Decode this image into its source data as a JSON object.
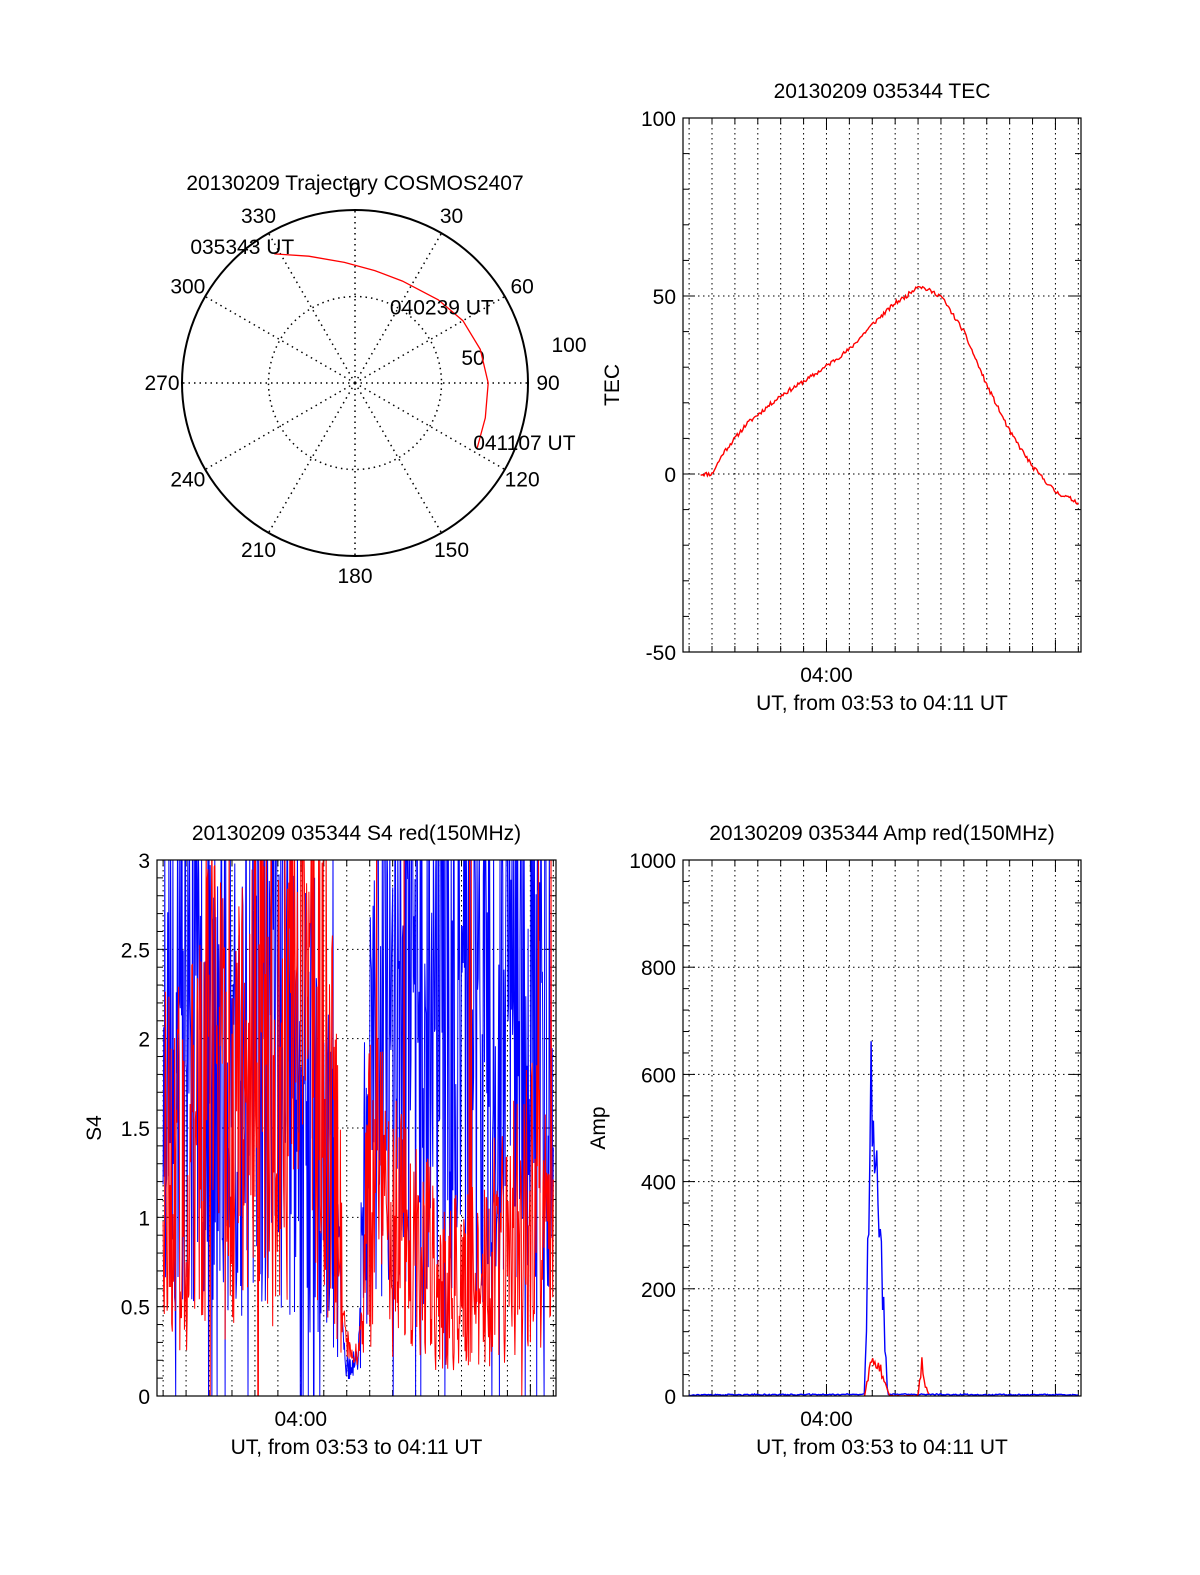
{
  "colors": {
    "series_a": "#ff0000",
    "series_b": "#0000ff",
    "axes": "#000000",
    "grid": "#000000"
  },
  "chart_data": [
    {
      "id": "trajectory",
      "type": "polar",
      "title": "20130209 Trajectory COSMOS2407",
      "azimuth_labels": [
        "0",
        "30",
        "60",
        "90",
        "120",
        "150",
        "180",
        "210",
        "240",
        "270",
        "300",
        "330"
      ],
      "radius_labels": [
        "50",
        "100"
      ],
      "rlim": [
        0,
        100
      ],
      "grid": true,
      "track": [
        {
          "az": 328,
          "r": 88
        },
        {
          "az": 340,
          "r": 78
        },
        {
          "az": 355,
          "r": 70
        },
        {
          "az": 10,
          "r": 66
        },
        {
          "az": 25,
          "r": 65
        },
        {
          "az": 45,
          "r": 68
        },
        {
          "az": 60,
          "r": 72
        },
        {
          "az": 75,
          "r": 75
        },
        {
          "az": 90,
          "r": 77
        },
        {
          "az": 105,
          "r": 78
        },
        {
          "az": 118,
          "r": 80
        }
      ],
      "annotations": [
        {
          "text": "035343 UT",
          "az": 328,
          "r": 88
        },
        {
          "text": "040239 UT",
          "az": 60,
          "r": 72
        },
        {
          "text": "041107 UT",
          "az": 118,
          "r": 80
        }
      ]
    },
    {
      "id": "tec",
      "type": "line",
      "title": "20130209 035344 TEC",
      "xlabel": "UT, from 03:53 to 04:11 UT",
      "ylabel": "TEC",
      "x_tick_labels": [
        "04:00"
      ],
      "y_tick_labels": [
        "-50",
        "0",
        "50",
        "100"
      ],
      "xlim": [
        "03:53:44",
        "04:11:07"
      ],
      "ylim": [
        -50,
        100
      ],
      "grid": true,
      "series": [
        {
          "color": "#ff0000",
          "x": [
            "03:54:30",
            "03:55:00",
            "03:55:30",
            "03:56:30",
            "03:58:00",
            "03:59:30",
            "04:01:00",
            "04:02:00",
            "04:03:00",
            "04:03:30",
            "04:04:00",
            "04:05:00",
            "04:06:00",
            "04:07:00",
            "04:08:00",
            "04:09:00",
            "04:10:00",
            "04:11:00"
          ],
          "y": [
            0,
            0,
            6,
            14,
            22,
            28,
            35,
            42,
            48,
            50,
            53,
            50,
            40,
            25,
            12,
            2,
            -5,
            -8
          ]
        }
      ]
    },
    {
      "id": "s4",
      "type": "line",
      "title": "20130209 035344 S4 red(150MHz)",
      "xlabel": "UT, from 03:53 to 04:11 UT",
      "ylabel": "S4",
      "x_tick_labels": [
        "04:00"
      ],
      "y_tick_labels": [
        "0",
        "0.5",
        "1",
        "1.5",
        "2",
        "2.5",
        "3"
      ],
      "xlim": [
        "03:53:44",
        "04:11:07"
      ],
      "ylim": [
        0,
        3
      ],
      "grid": true,
      "series": [
        {
          "color": "#0000ff",
          "x": [
            "03:54:00",
            "03:55:00",
            "03:56:00",
            "03:57:00",
            "03:58:00",
            "03:59:00",
            "04:00:00",
            "04:01:00",
            "04:01:30",
            "04:02:00",
            "04:02:30",
            "04:03:00",
            "04:04:00",
            "04:05:00",
            "04:06:00",
            "04:07:00",
            "04:08:00",
            "04:09:00",
            "04:10:00",
            "04:11:00"
          ],
          "y": [
            2.0,
            2.1,
            1.9,
            2.0,
            2.2,
            2.3,
            1.8,
            1.6,
            0.8,
            0.15,
            0.2,
            2.0,
            2.3,
            2.2,
            2.4,
            2.3,
            2.2,
            2.4,
            2.3,
            2.2
          ]
        },
        {
          "color": "#ff0000",
          "x": [
            "03:54:00",
            "03:55:00",
            "03:56:00",
            "03:57:00",
            "03:58:00",
            "03:59:00",
            "04:00:00",
            "04:01:00",
            "04:01:30",
            "04:02:00",
            "04:02:30",
            "04:03:00",
            "04:04:00",
            "04:05:00",
            "04:06:00",
            "04:07:00",
            "04:08:00",
            "04:09:00",
            "04:10:00",
            "04:11:00"
          ],
          "y": [
            1.5,
            1.2,
            1.8,
            1.4,
            2.0,
            1.6,
            2.2,
            1.9,
            1.3,
            0.3,
            0.2,
            1.2,
            1.0,
            0.8,
            0.7,
            0.6,
            0.75,
            0.9,
            1.1,
            0.9
          ]
        }
      ]
    },
    {
      "id": "amp",
      "type": "line",
      "title": "20130209 035344 Amp red(150MHz)",
      "xlabel": "UT, from 03:53 to 04:11 UT",
      "ylabel": "Amp",
      "x_tick_labels": [
        "04:00"
      ],
      "y_tick_labels": [
        "0",
        "200",
        "400",
        "600",
        "800",
        "1000"
      ],
      "xlim": [
        "03:53:44",
        "04:11:07"
      ],
      "ylim": [
        0,
        1000
      ],
      "grid": true,
      "series": [
        {
          "color": "#0000ff",
          "x": [
            "03:54:00",
            "04:01:40",
            "04:01:50",
            "04:01:58",
            "04:02:06",
            "04:02:14",
            "04:02:22",
            "04:02:30",
            "04:02:40",
            "04:11:00"
          ],
          "y": [
            2,
            3,
            300,
            610,
            520,
            420,
            300,
            150,
            3,
            2
          ]
        },
        {
          "color": "#ff0000",
          "x": [
            "04:01:40",
            "04:01:55",
            "04:02:05",
            "04:02:20",
            "04:02:35",
            "04:02:45",
            "04:04:00",
            "04:04:05",
            "04:04:10",
            "04:04:15",
            "04:04:30"
          ],
          "y": [
            0,
            60,
            70,
            50,
            25,
            0,
            0,
            30,
            60,
            25,
            0
          ]
        }
      ]
    }
  ]
}
